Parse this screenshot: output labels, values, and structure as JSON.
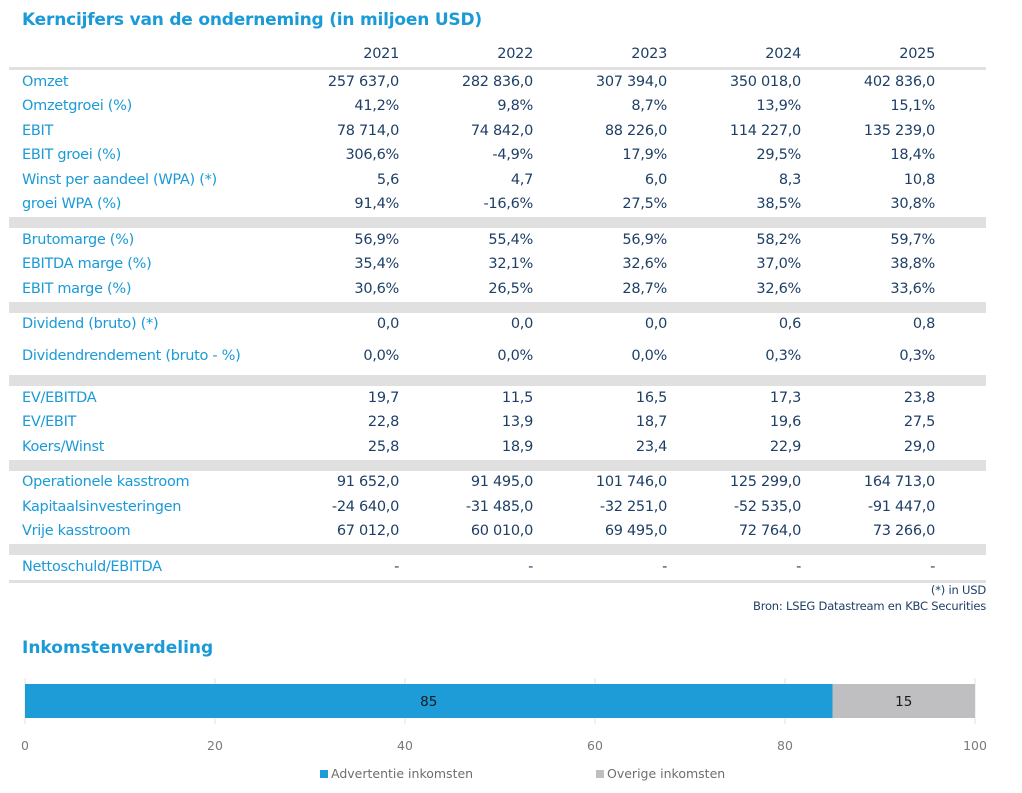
{
  "title": "Kerncijfers van de onderneming (in miljoen USD)",
  "table": {
    "years": [
      "2021",
      "2022",
      "2023",
      "2024",
      "2025"
    ],
    "groups": [
      [
        {
          "label": "Omzet",
          "values": [
            "257 637,0",
            "282 836,0",
            "307 394,0",
            "350 018,0",
            "402 836,0"
          ]
        },
        {
          "label": "Omzetgroei (%)",
          "values": [
            "41,2%",
            "9,8%",
            "8,7%",
            "13,9%",
            "15,1%"
          ]
        },
        {
          "label": "EBIT",
          "values": [
            "78 714,0",
            "74 842,0",
            "88 226,0",
            "114 227,0",
            "135 239,0"
          ]
        },
        {
          "label": "EBIT groei (%)",
          "values": [
            "306,6%",
            "-4,9%",
            "17,9%",
            "29,5%",
            "18,4%"
          ]
        },
        {
          "label": "Winst per aandeel (WPA) (*)",
          "values": [
            "5,6",
            "4,7",
            "6,0",
            "8,3",
            "10,8"
          ]
        },
        {
          "label": "groei WPA (%)",
          "values": [
            "91,4%",
            "-16,6%",
            "27,5%",
            "38,5%",
            "30,8%"
          ]
        }
      ],
      [
        {
          "label": "Brutomarge (%)",
          "values": [
            "56,9%",
            "55,4%",
            "56,9%",
            "58,2%",
            "59,7%"
          ]
        },
        {
          "label": "EBITDA marge (%)",
          "values": [
            "35,4%",
            "32,1%",
            "32,6%",
            "37,0%",
            "38,8%"
          ]
        },
        {
          "label": "EBIT marge (%)",
          "values": [
            "30,6%",
            "26,5%",
            "28,7%",
            "32,6%",
            "33,6%"
          ]
        }
      ],
      [
        {
          "label": "Dividend (bruto) (*)",
          "values": [
            "0,0",
            "0,0",
            "0,0",
            "0,6",
            "0,8"
          ]
        },
        {
          "label": "Dividendrendement (bruto - %)",
          "values": [
            "0,0%",
            "0,0%",
            "0,0%",
            "0,3%",
            "0,3%"
          ],
          "tall": true
        }
      ],
      [
        {
          "label": "EV/EBITDA",
          "values": [
            "19,7",
            "11,5",
            "16,5",
            "17,3",
            "23,8"
          ]
        },
        {
          "label": "EV/EBIT",
          "values": [
            "22,8",
            "13,9",
            "18,7",
            "19,6",
            "27,5"
          ]
        },
        {
          "label": "Koers/Winst",
          "values": [
            "25,8",
            "18,9",
            "23,4",
            "22,9",
            "29,0"
          ]
        }
      ],
      [
        {
          "label": "Operationele kasstroom",
          "values": [
            "91 652,0",
            "91 495,0",
            "101 746,0",
            "125 299,0",
            "164 713,0"
          ]
        },
        {
          "label": "Kapitaalsinvesteringen",
          "values": [
            "-24 640,0",
            "-31 485,0",
            "-32 251,0",
            "-52 535,0",
            "-91 447,0"
          ]
        },
        {
          "label": "Vrije kasstroom",
          "values": [
            "67 012,0",
            "60 010,0",
            "69 495,0",
            "72 764,0",
            "73 266,0"
          ]
        }
      ],
      [
        {
          "label": "Nettoschuld/EBITDA",
          "values": [
            "-",
            "-",
            "-",
            "-",
            "-"
          ]
        }
      ]
    ]
  },
  "footnotes": {
    "note": "(*) in USD",
    "source": "Bron: LSEG Datastream en KBC Securities"
  },
  "chart_data": {
    "type": "bar",
    "orientation": "horizontal-stacked",
    "title": "Inkomstenverdeling",
    "categories": [
      ""
    ],
    "series": [
      {
        "name": "Advertentie inkomsten",
        "values": [
          85
        ],
        "color": "#1e9cd8"
      },
      {
        "name": "Overige inkomsten",
        "values": [
          15
        ],
        "color": "#bfbfc1"
      }
    ],
    "xlim": [
      0,
      100
    ],
    "xticks": [
      0,
      20,
      40,
      60,
      80,
      100
    ],
    "xlabel": "",
    "ylabel": "",
    "grid": true,
    "legend": "bottom"
  }
}
